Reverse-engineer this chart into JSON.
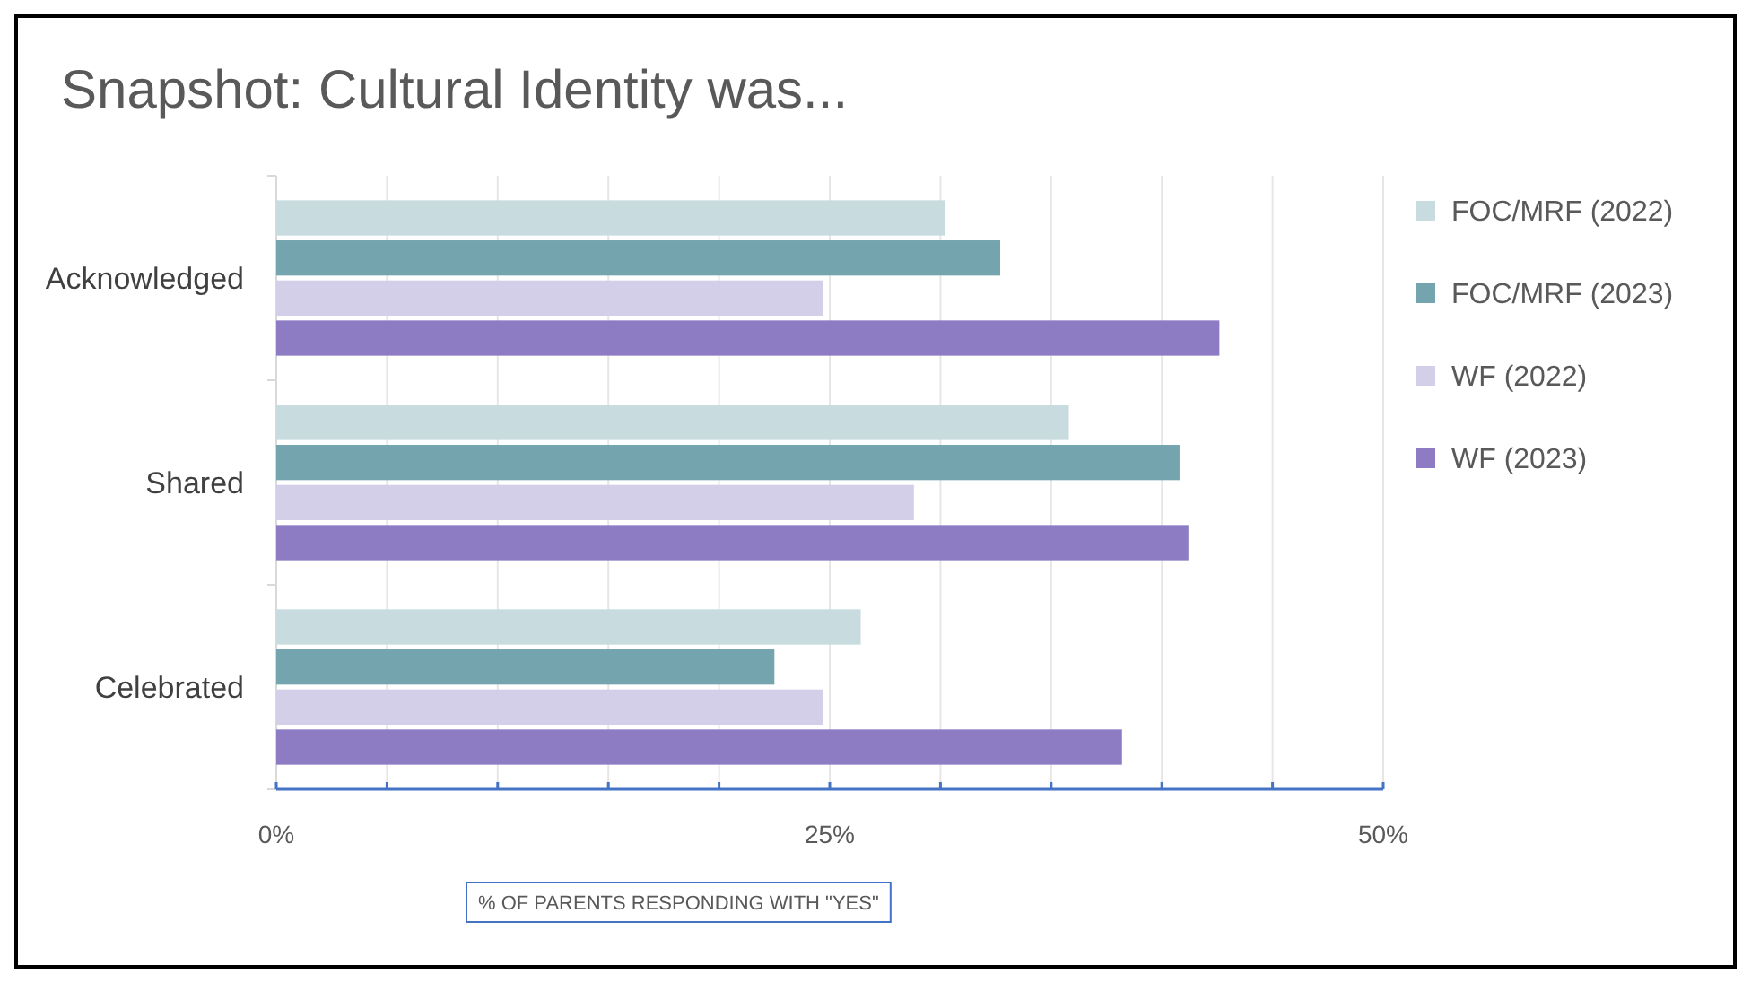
{
  "chart_data": {
    "type": "bar",
    "orientation": "horizontal",
    "title": "Snapshot: Cultural Identity was...",
    "xlabel": "% OF PARENTS RESPONDING WITH \"YES\"",
    "categories": [
      "Acknowledged",
      "Shared",
      "Celebrated"
    ],
    "series": [
      {
        "name": "FOC/MRF (2022)",
        "color": "#c8dcdf",
        "values": [
          30.2,
          35.8,
          26.4
        ]
      },
      {
        "name": "FOC/MRF (2023)",
        "color": "#74a5af",
        "values": [
          32.7,
          40.8,
          22.5
        ]
      },
      {
        "name": "WF (2022)",
        "color": "#d4cfe8",
        "values": [
          24.7,
          28.8,
          24.7
        ]
      },
      {
        "name": "WF (2023)",
        "color": "#8d7cc3",
        "values": [
          42.6,
          41.2,
          38.2
        ]
      }
    ],
    "xlim": [
      0,
      50
    ],
    "xticks": [
      {
        "value": 0,
        "label": "0%"
      },
      {
        "value": 5,
        "label": null
      },
      {
        "value": 10,
        "label": null
      },
      {
        "value": 15,
        "label": null
      },
      {
        "value": 20,
        "label": null
      },
      {
        "value": 25,
        "label": "25%"
      },
      {
        "value": 30,
        "label": null
      },
      {
        "value": 35,
        "label": null
      },
      {
        "value": 40,
        "label": null
      },
      {
        "value": 45,
        "label": null
      },
      {
        "value": 50,
        "label": "50%"
      }
    ],
    "grid": "x",
    "legend": "right"
  }
}
